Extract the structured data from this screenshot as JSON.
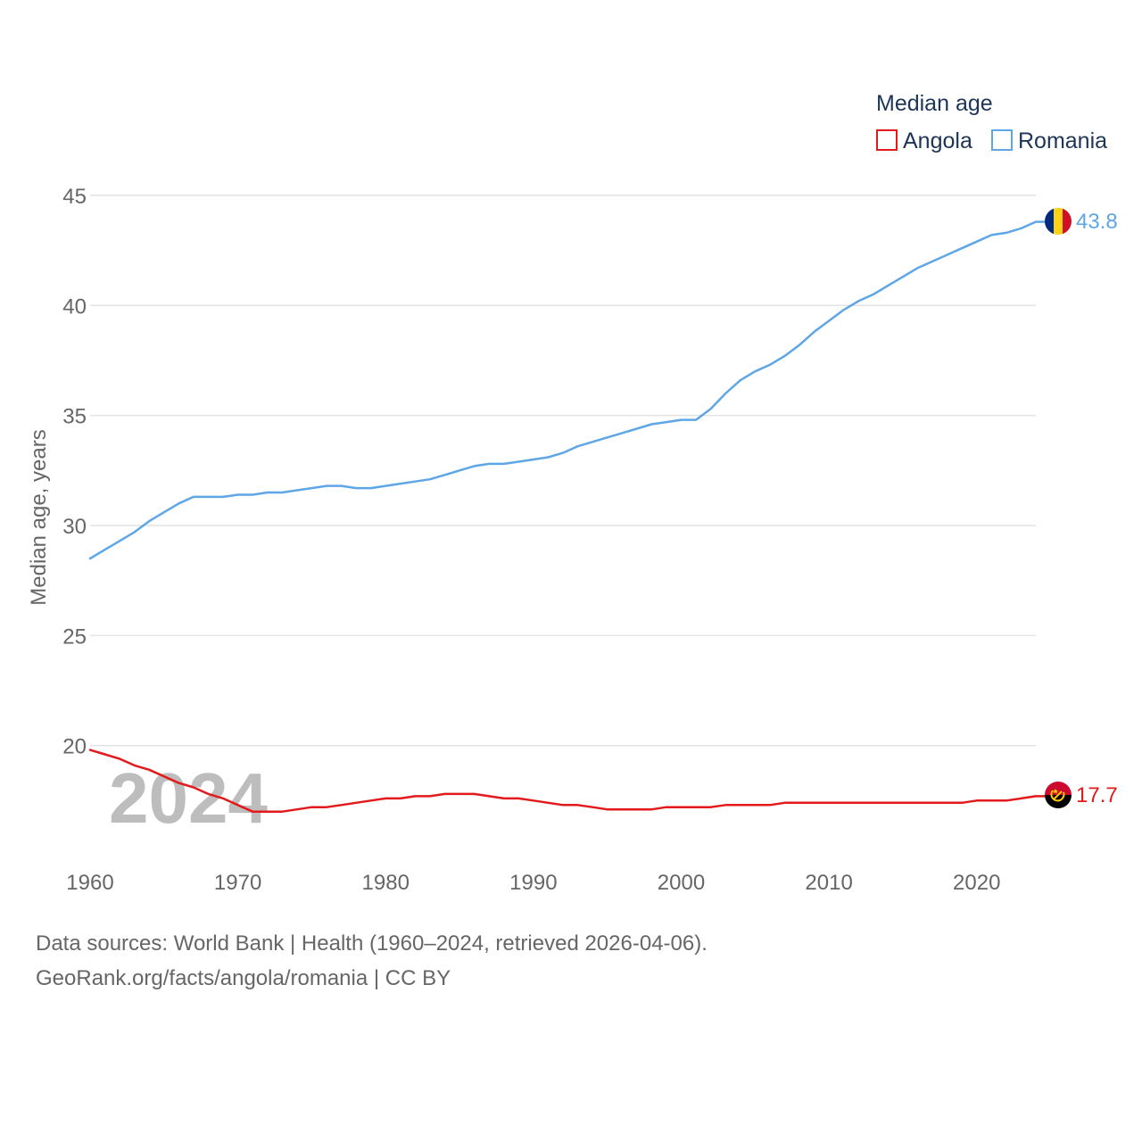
{
  "chart_data": {
    "type": "line",
    "ylabel": "Median age, years",
    "ylim": [
      15,
      45
    ],
    "xlim": [
      1960,
      2024
    ],
    "yticks": [
      20,
      25,
      30,
      35,
      40,
      45
    ],
    "xticks": [
      1960,
      1970,
      1980,
      1990,
      2000,
      2010,
      2020
    ],
    "grid": true,
    "legend": {
      "title": "Median age",
      "position": "top-right"
    },
    "watermark_year": "2024",
    "x": [
      1960,
      1961,
      1962,
      1963,
      1964,
      1965,
      1966,
      1967,
      1968,
      1969,
      1970,
      1971,
      1972,
      1973,
      1974,
      1975,
      1976,
      1977,
      1978,
      1979,
      1980,
      1981,
      1982,
      1983,
      1984,
      1985,
      1986,
      1987,
      1988,
      1989,
      1990,
      1991,
      1992,
      1993,
      1994,
      1995,
      1996,
      1997,
      1998,
      1999,
      2000,
      2001,
      2002,
      2003,
      2004,
      2005,
      2006,
      2007,
      2008,
      2009,
      2010,
      2011,
      2012,
      2013,
      2014,
      2015,
      2016,
      2017,
      2018,
      2019,
      2020,
      2021,
      2022,
      2023,
      2024
    ],
    "series": [
      {
        "name": "Angola",
        "color": "#e31a1c",
        "end_label": "17.7",
        "values": [
          19.8,
          19.6,
          19.4,
          19.1,
          18.9,
          18.6,
          18.3,
          18.1,
          17.8,
          17.6,
          17.3,
          17.0,
          17.0,
          17.0,
          17.1,
          17.2,
          17.2,
          17.3,
          17.4,
          17.5,
          17.6,
          17.6,
          17.7,
          17.7,
          17.8,
          17.8,
          17.8,
          17.7,
          17.6,
          17.6,
          17.5,
          17.4,
          17.3,
          17.3,
          17.2,
          17.1,
          17.1,
          17.1,
          17.1,
          17.2,
          17.2,
          17.2,
          17.2,
          17.3,
          17.3,
          17.3,
          17.3,
          17.4,
          17.4,
          17.4,
          17.4,
          17.4,
          17.4,
          17.4,
          17.4,
          17.4,
          17.4,
          17.4,
          17.4,
          17.4,
          17.5,
          17.5,
          17.5,
          17.6,
          17.7
        ]
      },
      {
        "name": "Romania",
        "color": "#5ea6e6",
        "end_label": "43.8",
        "values": [
          28.5,
          28.9,
          29.3,
          29.7,
          30.2,
          30.6,
          31.0,
          31.3,
          31.3,
          31.3,
          31.4,
          31.4,
          31.5,
          31.5,
          31.6,
          31.7,
          31.8,
          31.8,
          31.7,
          31.7,
          31.8,
          31.9,
          32.0,
          32.1,
          32.3,
          32.5,
          32.7,
          32.8,
          32.8,
          32.9,
          33.0,
          33.1,
          33.3,
          33.6,
          33.8,
          34.0,
          34.2,
          34.4,
          34.6,
          34.7,
          34.8,
          34.8,
          35.3,
          36.0,
          36.6,
          37.0,
          37.3,
          37.7,
          38.2,
          38.8,
          39.3,
          39.8,
          40.2,
          40.5,
          40.9,
          41.3,
          41.7,
          42.0,
          42.3,
          42.6,
          42.9,
          43.2,
          43.3,
          43.5,
          43.8
        ]
      }
    ]
  },
  "footer": {
    "line1": "Data sources: World Bank | Health (1960–2024, retrieved 2026-04-06).",
    "line2": "GeoRank.org/facts/angola/romania | CC BY"
  }
}
